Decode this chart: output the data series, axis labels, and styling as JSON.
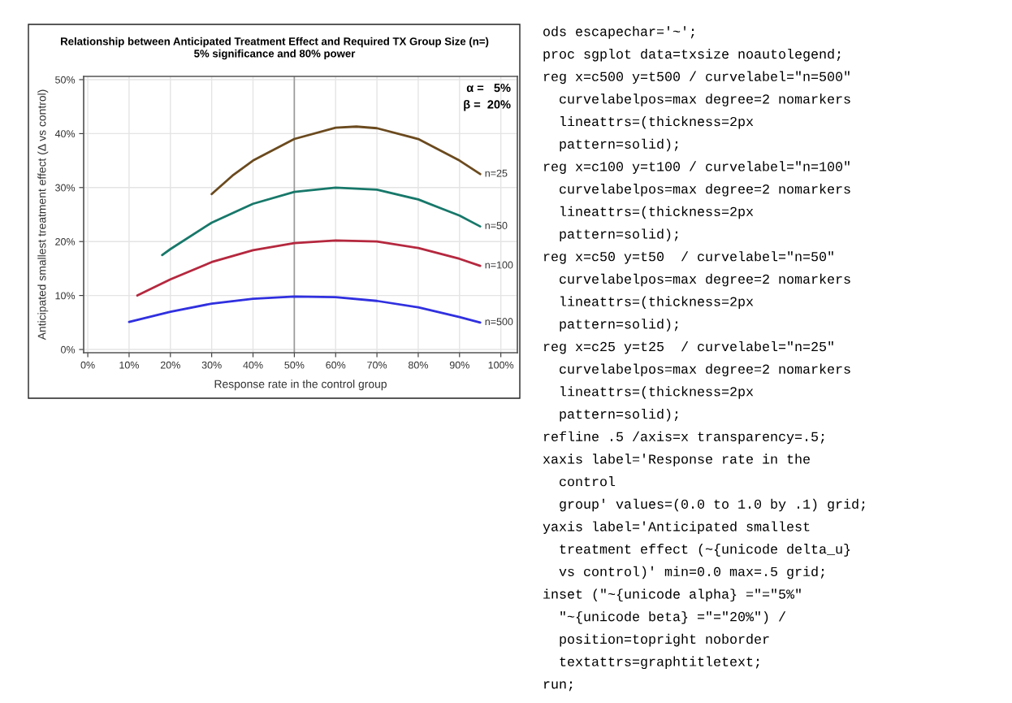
{
  "chart_data": [
    {
      "type": "line",
      "title": "Relationship between Anticipated Treatment Effect and Required TX Group Size (n=)",
      "subtitle": "5% significance and 80% power",
      "xlabel": "Response rate in the control group",
      "ylabel": "Anticipated smallest treatment effect (Δ vs control)",
      "xlim": [
        -1,
        104
      ],
      "ylim": [
        -0.6,
        50.6
      ],
      "xticks": [
        {
          "value": 0,
          "label": "0%"
        },
        {
          "value": 10,
          "label": "10%"
        },
        {
          "value": 20,
          "label": "20%"
        },
        {
          "value": 30,
          "label": "30%"
        },
        {
          "value": 40,
          "label": "40%"
        },
        {
          "value": 50,
          "label": "50%"
        },
        {
          "value": 60,
          "label": "60%"
        },
        {
          "value": 70,
          "label": "70%"
        },
        {
          "value": 80,
          "label": "80%"
        },
        {
          "value": 90,
          "label": "90%"
        },
        {
          "value": 100,
          "label": "100%"
        }
      ],
      "yticks": [
        {
          "value": 0,
          "label": "0%"
        },
        {
          "value": 10,
          "label": "10%"
        },
        {
          "value": 20,
          "label": "20%"
        },
        {
          "value": 30,
          "label": "30%"
        },
        {
          "value": 40,
          "label": "40%"
        },
        {
          "value": 50,
          "label": "50%"
        }
      ],
      "grid": true,
      "legend": false,
      "marker": "none",
      "line_style": "solid",
      "series": [
        {
          "name": "n=500",
          "color": "#3030e0",
          "x": [
            10,
            20,
            30,
            40,
            50,
            60,
            70,
            80,
            90,
            95
          ],
          "values": [
            5.1,
            7.0,
            8.5,
            9.4,
            9.8,
            9.7,
            9.0,
            7.8,
            6.0,
            5.0
          ]
        },
        {
          "name": "n=100",
          "color": "#b5283e",
          "x": [
            12,
            20,
            30,
            40,
            50,
            60,
            70,
            80,
            90,
            95
          ],
          "values": [
            10.0,
            13.0,
            16.2,
            18.4,
            19.7,
            20.2,
            20.0,
            18.8,
            16.8,
            15.5
          ]
        },
        {
          "name": "n=50",
          "color": "#17786a",
          "x": [
            18,
            20,
            30,
            40,
            50,
            60,
            70,
            80,
            90,
            95
          ],
          "values": [
            17.5,
            18.6,
            23.5,
            27.0,
            29.2,
            30.0,
            29.6,
            27.8,
            24.8,
            22.8
          ]
        },
        {
          "name": "n=25",
          "color": "#6b4a1e",
          "x": [
            30,
            35,
            40,
            50,
            60,
            65,
            70,
            80,
            90,
            95
          ],
          "values": [
            28.8,
            32.2,
            35.0,
            39.0,
            41.1,
            41.3,
            41.0,
            39.0,
            35.0,
            32.5
          ]
        }
      ],
      "ref_lines": [
        {
          "axis": "x",
          "value": 50,
          "color": "#999999"
        }
      ],
      "annotations": [
        "α =   5%",
        "β =  20%"
      ]
    },
    {
      "type": "other",
      "annotations": [
        "ods escapechar='~';",
        "proc sgplot data=txsize noautolegend;",
        "reg x=c500 y=t500 / curvelabel=\"n=500\"",
        "  curvelabelpos=max degree=2 nomarkers",
        "  lineattrs=(thickness=2px",
        "  pattern=solid);",
        "reg x=c100 y=t100 / curvelabel=\"n=100\"",
        "  curvelabelpos=max degree=2 nomarkers",
        "  lineattrs=(thickness=2px",
        "  pattern=solid);",
        "reg x=c50 y=t50  / curvelabel=\"n=50\"",
        "  curvelabelpos=max degree=2 nomarkers",
        "  lineattrs=(thickness=2px",
        "  pattern=solid);",
        "reg x=c25 y=t25  / curvelabel=\"n=25\"",
        "  curvelabelpos=max degree=2 nomarkers",
        "  lineattrs=(thickness=2px",
        "  pattern=solid);",
        "refline .5 /axis=x transparency=.5;",
        "xaxis label='Response rate in the",
        "  control",
        "  group' values=(0.0 to 1.0 by .1) grid;",
        "yaxis label='Anticipated smallest",
        "  treatment effect (~{unicode delta_u}",
        "  vs control)' min=0.0 max=.5 grid;",
        "inset (\"~{unicode alpha} =\"=\"5%\"",
        "  \"~{unicode beta} =\"=\"20%\") /",
        "  position=topright noborder",
        "  textattrs=graphtitletext;",
        "run;"
      ]
    }
  ]
}
